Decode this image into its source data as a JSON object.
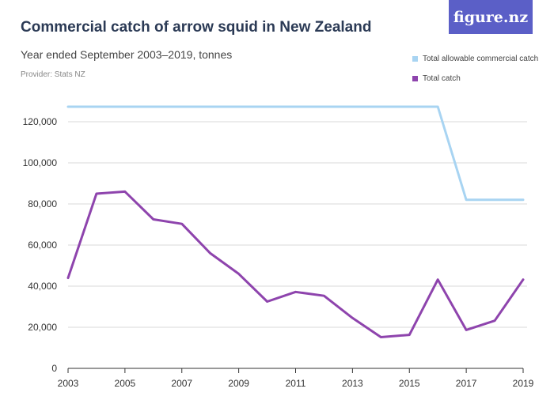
{
  "header": {
    "title": "Commercial catch of arrow squid in New Zealand",
    "subtitle": "Year ended September 2003–2019, tonnes",
    "provider": "Provider: Stats NZ",
    "logo_text": "figure.nz"
  },
  "colors": {
    "tacc": "#a8d4f2",
    "catch": "#8e44ad",
    "grid": "#d9d9d9",
    "axis": "#333333",
    "logo_bg": "#5b5fc7"
  },
  "chart_data": {
    "type": "line",
    "title": "Commercial catch of arrow squid in New Zealand",
    "subtitle": "Year ended September 2003–2019, tonnes",
    "xlabel": "",
    "ylabel": "",
    "x": [
      2003,
      2004,
      2005,
      2006,
      2007,
      2008,
      2009,
      2010,
      2011,
      2012,
      2013,
      2014,
      2015,
      2016,
      2017,
      2018,
      2019
    ],
    "x_tick_labels": [
      "2003",
      "2005",
      "2007",
      "2009",
      "2011",
      "2013",
      "2015",
      "2017",
      "2019"
    ],
    "ylim": [
      0,
      130000
    ],
    "y_ticks": [
      0,
      20000,
      40000,
      60000,
      80000,
      100000,
      120000
    ],
    "y_tick_labels": [
      "0",
      "20,000",
      "40,000",
      "60,000",
      "80,000",
      "100,000",
      "120,000"
    ],
    "grid": "horizontal",
    "legend_position": "top-right",
    "series": [
      {
        "name": "Total allowable commercial catch",
        "color": "#a8d4f2",
        "values": [
          127300,
          127300,
          127300,
          127300,
          127300,
          127300,
          127300,
          127300,
          127300,
          127300,
          127300,
          127300,
          127300,
          127300,
          82000,
          82000,
          82000
        ]
      },
      {
        "name": "Total catch",
        "color": "#8e44ad",
        "values": [
          44000,
          85000,
          86000,
          72500,
          70300,
          56000,
          46000,
          32500,
          37200,
          35300,
          24500,
          15200,
          16300,
          43200,
          18700,
          23200,
          43200
        ]
      }
    ]
  }
}
